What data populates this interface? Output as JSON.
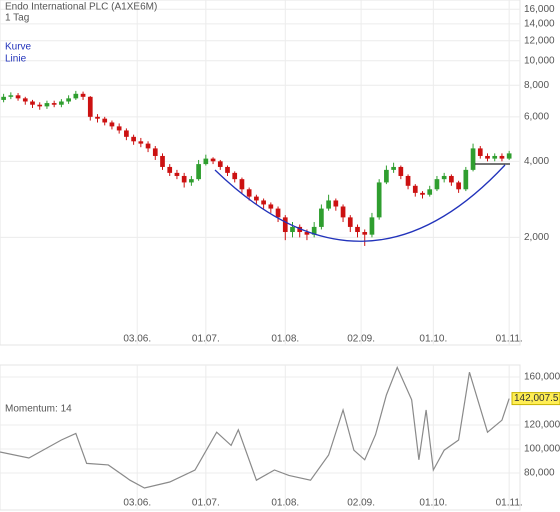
{
  "chart_data": [
    {
      "type": "candlestick",
      "title": "Endo International PLC (A1XE6M)",
      "subtitle": "1 Tag",
      "annotations": [
        "Kurve",
        "Linie"
      ],
      "x": [
        1,
        3,
        5,
        7,
        9,
        11,
        13,
        15,
        17,
        19,
        21,
        23,
        25,
        27,
        29,
        31,
        33,
        35,
        37,
        39,
        41,
        43,
        45,
        47,
        49,
        51,
        53,
        55,
        57,
        59,
        61,
        63,
        65,
        67,
        69,
        71,
        73,
        75,
        77,
        79,
        81,
        83,
        85,
        87,
        89,
        91,
        93,
        95,
        97,
        99,
        101,
        103,
        105,
        107,
        109,
        111,
        113,
        115,
        117,
        119,
        121,
        123,
        125,
        127,
        129,
        131,
        133,
        135,
        137,
        139,
        141
      ],
      "open": [
        7000,
        7200,
        7300,
        7100,
        6900,
        6700,
        6600,
        6800,
        6700,
        6900,
        7100,
        7400,
        7200,
        6000,
        5900,
        5700,
        5500,
        5300,
        5000,
        4800,
        4700,
        4500,
        4200,
        3800,
        3600,
        3500,
        3300,
        3400,
        3900,
        4100,
        4000,
        3800,
        3600,
        3400,
        3100,
        2900,
        2800,
        2700,
        2600,
        2400,
        2100,
        2200,
        2100,
        2050,
        2200,
        2600,
        2800,
        2650,
        2400,
        2200,
        2100,
        2050,
        2400,
        3300,
        3700,
        3800,
        3500,
        3200,
        3000,
        2950,
        3100,
        3400,
        3500,
        3300,
        3100,
        3700,
        4500,
        4200,
        4100,
        4200,
        4100
      ],
      "high": [
        7400,
        7500,
        7450,
        7200,
        7000,
        6850,
        6950,
        6950,
        7050,
        7300,
        7600,
        7550,
        7250,
        6150,
        6000,
        5800,
        5650,
        5400,
        5100,
        4950,
        4800,
        4600,
        4300,
        3900,
        3700,
        3600,
        3500,
        4050,
        4250,
        4150,
        4050,
        3850,
        3650,
        3450,
        3150,
        2950,
        2850,
        2750,
        2650,
        2450,
        2300,
        2250,
        2150,
        2300,
        2700,
        2950,
        2850,
        2700,
        2450,
        2250,
        2150,
        2500,
        3400,
        3850,
        3950,
        3850,
        3550,
        3250,
        3050,
        3200,
        3500,
        3600,
        3550,
        3350,
        3800,
        4700,
        4600,
        4300,
        4300,
        4300,
        4400
      ],
      "low": [
        6850,
        7050,
        6950,
        6700,
        6500,
        6400,
        6450,
        6550,
        6550,
        6750,
        7000,
        7000,
        5800,
        5700,
        5550,
        5350,
        5150,
        4850,
        4650,
        4550,
        4350,
        4050,
        3700,
        3500,
        3400,
        3150,
        3200,
        3350,
        3850,
        3900,
        3700,
        3500,
        3300,
        3000,
        2800,
        2700,
        2600,
        2500,
        2300,
        1950,
        2000,
        2000,
        1950,
        2000,
        2150,
        2550,
        2550,
        2300,
        2100,
        2000,
        1850,
        2000,
        2350,
        3250,
        3600,
        3400,
        3100,
        2900,
        2850,
        2900,
        3050,
        3300,
        3200,
        3000,
        3050,
        3650,
        4100,
        4000,
        4000,
        4000,
        4050
      ],
      "close": [
        7200,
        7300,
        7100,
        6900,
        6700,
        6600,
        6800,
        6700,
        6900,
        7100,
        7400,
        7200,
        6000,
        5900,
        5700,
        5500,
        5300,
        5000,
        4800,
        4700,
        4500,
        4200,
        3800,
        3600,
        3500,
        3300,
        3400,
        3900,
        4100,
        4000,
        3800,
        3600,
        3400,
        3100,
        2900,
        2800,
        2700,
        2600,
        2400,
        2100,
        2200,
        2100,
        2050,
        2200,
        2600,
        2800,
        2650,
        2400,
        2200,
        2100,
        2050,
        2400,
        3300,
        3700,
        3800,
        3500,
        3200,
        3000,
        2950,
        3100,
        3400,
        3500,
        3300,
        3100,
        3700,
        4500,
        4200,
        4100,
        4200,
        4100,
        4300
      ],
      "up_color": "#2f9e2f",
      "down_color": "#cc1111",
      "xlim": [
        0,
        144
      ],
      "xticks": [
        {
          "value": 38,
          "label": "03.06."
        },
        {
          "value": 57,
          "label": "01.07."
        },
        {
          "value": 79,
          "label": "01.08."
        },
        {
          "value": 100,
          "label": "02.09."
        },
        {
          "value": 120,
          "label": "01.10."
        },
        {
          "value": 141,
          "label": "01.11."
        }
      ],
      "ylim": [
        750,
        17400
      ],
      "log_scale": true,
      "grid": true,
      "yticks": [
        {
          "value": 2000,
          "label": "2,000"
        },
        {
          "value": 4000,
          "label": "4,000"
        },
        {
          "value": 6000,
          "label": "6,000"
        },
        {
          "value": 8000,
          "label": "8,000"
        },
        {
          "value": 10000,
          "label": "10,000"
        },
        {
          "value": 12000,
          "label": "12,000"
        },
        {
          "value": 14000,
          "label": "14,000"
        },
        {
          "value": 16000,
          "label": "16,000"
        }
      ]
    },
    {
      "type": "line",
      "label": "Momentum: 14",
      "x": [
        0,
        8,
        17,
        21,
        24,
        30,
        36,
        40,
        47,
        54,
        60,
        64,
        66,
        71,
        76,
        80,
        86,
        91,
        95,
        98,
        101,
        104,
        107,
        110,
        114,
        116,
        118,
        120,
        123,
        127,
        130,
        135,
        139,
        141
      ],
      "values": [
        97500,
        92500,
        107500,
        113000,
        88000,
        86700,
        74000,
        67500,
        72500,
        82500,
        114000,
        103000,
        116000,
        74000,
        82500,
        78000,
        74000,
        95000,
        132500,
        99000,
        91000,
        112000,
        145000,
        168000,
        141000,
        91000,
        132500,
        82500,
        99000,
        107500,
        164000,
        114000,
        124000,
        142007.5
      ],
      "last_value_label": "142,007.5",
      "color": "#8a8a8a",
      "xlim": [
        0,
        144
      ],
      "xticks": [
        {
          "value": 38,
          "label": "03.06."
        },
        {
          "value": 57,
          "label": "01.07."
        },
        {
          "value": 79,
          "label": "01.08."
        },
        {
          "value": 100,
          "label": "02.09."
        },
        {
          "value": 120,
          "label": "01.10."
        },
        {
          "value": 141,
          "label": "01.11."
        }
      ],
      "ylim": [
        50000,
        170000
      ],
      "grid": true,
      "yticks": [
        {
          "value": 80000,
          "label": "80,000"
        },
        {
          "value": 100000,
          "label": "100,000"
        },
        {
          "value": 120000,
          "label": "120,000"
        },
        {
          "value": 160000,
          "label": "160,000"
        }
      ]
    }
  ]
}
